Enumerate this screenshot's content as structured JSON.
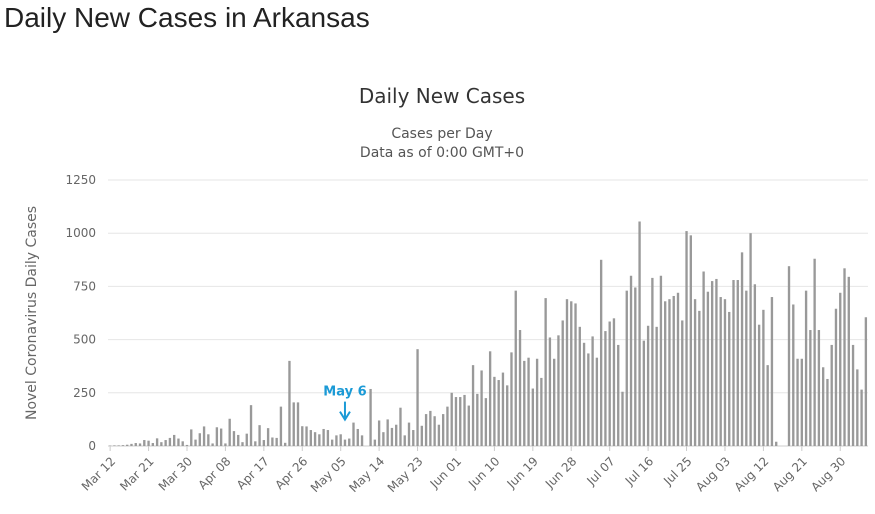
{
  "page": {
    "heading": "Daily New Cases in Arkansas"
  },
  "colors": {
    "bar": "#999999",
    "annotation": "#1b9ad6",
    "grid": "#e6e6e6",
    "axis_text": "#666666",
    "title": "#333333"
  },
  "chart_data": {
    "type": "bar",
    "title": "Daily New Cases",
    "subtitle": [
      "Cases per Day",
      "Data as of 0:00 GMT+0"
    ],
    "xlabel": "",
    "ylabel": "Novel Coronavirus Daily Cases",
    "ylim": [
      0,
      1250
    ],
    "yticks": [
      0,
      250,
      500,
      750,
      1000,
      1250
    ],
    "grid": true,
    "legend": "none",
    "x_tick_labels": [
      "Mar 12",
      "Mar 21",
      "Mar 30",
      "Apr 08",
      "Apr 17",
      "Apr 26",
      "May 05",
      "May 14",
      "May 23",
      "Jun 01",
      "Jun 10",
      "Jun 19",
      "Jun 28",
      "Jul 07",
      "Jul 16",
      "Jul 25",
      "Aug 03",
      "Aug 12",
      "Aug 21",
      "Aug 30"
    ],
    "start_date": "2020-03-12",
    "annotation": {
      "label": "May 6",
      "date": "May 06"
    },
    "values": [
      2,
      3,
      3,
      4,
      6,
      10,
      14,
      12,
      28,
      25,
      14,
      36,
      18,
      28,
      38,
      52,
      35,
      22,
      5,
      78,
      30,
      60,
      92,
      55,
      12,
      88,
      82,
      12,
      128,
      70,
      52,
      18,
      58,
      192,
      22,
      98,
      28,
      84,
      40,
      38,
      185,
      15,
      400,
      205,
      205,
      93,
      92,
      75,
      65,
      55,
      80,
      75,
      30,
      50,
      55,
      30,
      35,
      110,
      80,
      50,
      0,
      268,
      30,
      120,
      65,
      125,
      85,
      100,
      180,
      50,
      110,
      75,
      455,
      95,
      150,
      165,
      140,
      100,
      150,
      185,
      250,
      230,
      230,
      240,
      190,
      380,
      245,
      355,
      225,
      445,
      325,
      310,
      345,
      285,
      440,
      730,
      545,
      400,
      415,
      270,
      410,
      320,
      695,
      510,
      410,
      520,
      590,
      690,
      680,
      670,
      560,
      485,
      435,
      515,
      415,
      875,
      540,
      585,
      600,
      475,
      255,
      730,
      800,
      745,
      1055,
      495,
      565,
      790,
      560,
      800,
      680,
      690,
      705,
      720,
      590,
      1010,
      990,
      690,
      635,
      820,
      725,
      775,
      785,
      700,
      690,
      630,
      780,
      780,
      910,
      730,
      1000,
      760,
      570,
      640,
      380,
      700,
      20,
      0,
      0,
      845,
      665,
      410,
      410,
      730,
      545,
      880,
      545,
      370,
      315,
      475,
      645,
      720,
      835,
      795,
      475,
      360,
      265,
      605
    ]
  }
}
